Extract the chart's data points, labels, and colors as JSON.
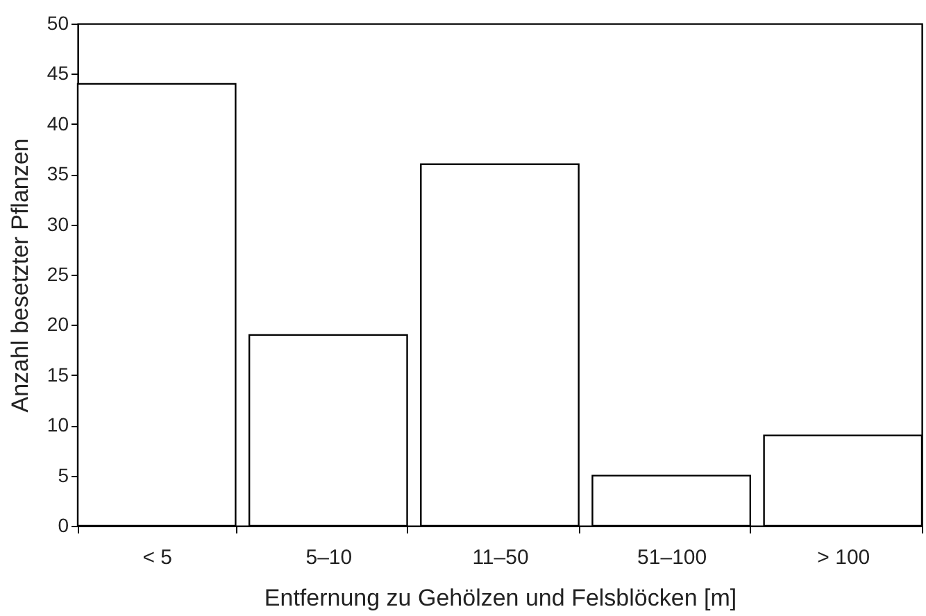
{
  "chart_data": {
    "type": "bar",
    "categories": [
      "< 5",
      "5–10",
      "11–50",
      "51–100",
      "> 100"
    ],
    "values": [
      44,
      19,
      36,
      5,
      9
    ],
    "color": "#ffffff",
    "xlabel": "Entfernung zu Gehölzen und Felsblöcken [m]",
    "ylabel": "Anzahl besetzter Pflanzen",
    "ylim": [
      0,
      50
    ],
    "yticks": [
      0,
      5,
      10,
      15,
      20,
      25,
      30,
      35,
      40,
      45,
      50
    ],
    "grid": false
  }
}
